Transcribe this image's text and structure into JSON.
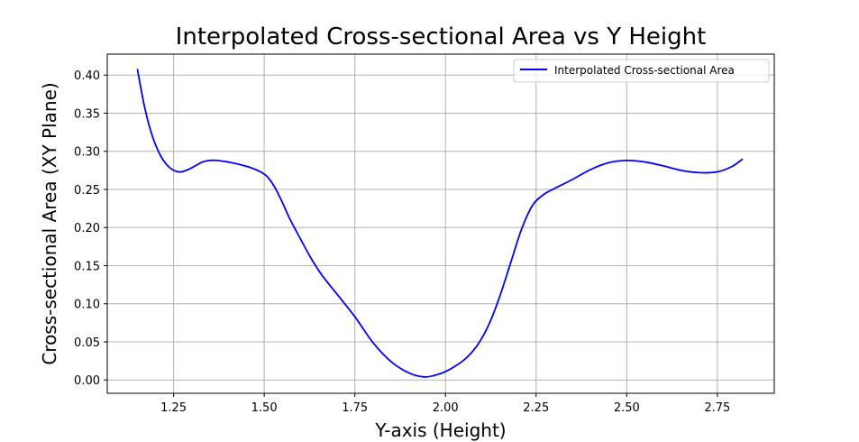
{
  "chart_data": {
    "type": "line",
    "title": "Interpolated Cross-sectional Area vs Y Height",
    "xlabel": "Y-axis (Height)",
    "ylabel": "Cross-sectional Area (XY Plane)",
    "xlim": [
      1.067,
      2.907
    ],
    "ylim": [
      -0.0175,
      0.4275
    ],
    "x_ticks": [
      1.25,
      1.5,
      1.75,
      2.0,
      2.25,
      2.5,
      2.75
    ],
    "x_tick_labels": [
      "1.25",
      "1.50",
      "1.75",
      "2.00",
      "2.25",
      "2.50",
      "2.75"
    ],
    "y_ticks": [
      0.0,
      0.05,
      0.1,
      0.15,
      0.2,
      0.25,
      0.3,
      0.35,
      0.4
    ],
    "y_tick_labels": [
      "0.00",
      "0.05",
      "0.10",
      "0.15",
      "0.20",
      "0.25",
      "0.30",
      "0.35",
      "0.40"
    ],
    "grid": true,
    "legend_position": "top-right",
    "series": [
      {
        "name": "Interpolated Cross-sectional Area",
        "color": "#0000ff",
        "x": [
          1.15,
          1.17,
          1.19,
          1.21,
          1.23,
          1.25,
          1.27,
          1.29,
          1.31,
          1.33,
          1.35,
          1.37,
          1.4,
          1.43,
          1.46,
          1.49,
          1.51,
          1.53,
          1.55,
          1.57,
          1.6,
          1.63,
          1.66,
          1.7,
          1.75,
          1.8,
          1.85,
          1.9,
          1.94,
          1.97,
          2.0,
          2.03,
          2.06,
          2.09,
          2.12,
          2.15,
          2.18,
          2.21,
          2.24,
          2.27,
          2.3,
          2.35,
          2.4,
          2.45,
          2.5,
          2.55,
          2.6,
          2.65,
          2.7,
          2.75,
          2.79,
          2.82
        ],
        "y": [
          0.408,
          0.358,
          0.322,
          0.298,
          0.283,
          0.275,
          0.273,
          0.276,
          0.281,
          0.286,
          0.288,
          0.288,
          0.286,
          0.283,
          0.279,
          0.273,
          0.266,
          0.252,
          0.233,
          0.212,
          0.185,
          0.159,
          0.137,
          0.113,
          0.083,
          0.049,
          0.024,
          0.009,
          0.004,
          0.006,
          0.011,
          0.019,
          0.03,
          0.047,
          0.073,
          0.11,
          0.154,
          0.198,
          0.229,
          0.243,
          0.251,
          0.263,
          0.276,
          0.285,
          0.288,
          0.286,
          0.281,
          0.275,
          0.272,
          0.273,
          0.28,
          0.29
        ]
      }
    ]
  }
}
